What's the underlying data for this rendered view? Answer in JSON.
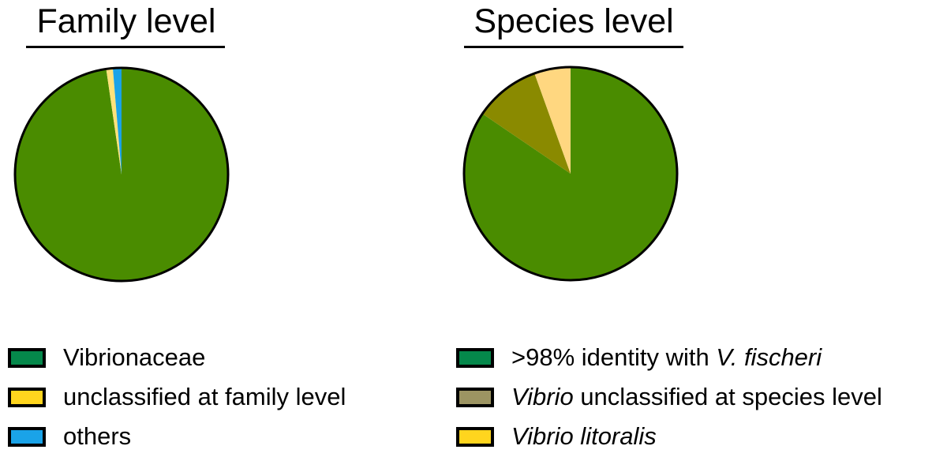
{
  "chart_data": [
    {
      "type": "pie",
      "title": "Family level",
      "slices": [
        {
          "label": "Vibrionaceae",
          "value": 97.7,
          "color": "#4a8c00"
        },
        {
          "label": "unclassified at family level",
          "value": 1.0,
          "color": "#ffe27a"
        },
        {
          "label": "others",
          "value": 1.3,
          "color": "#1aa3e8"
        }
      ],
      "legend": {
        "placement": "bottom-left",
        "entries": [
          {
            "label": "Vibrionaceae",
            "color": "#05884b"
          },
          {
            "label": "unclassified at family level",
            "color": "#ffd51e"
          },
          {
            "label": "others",
            "color": "#1aa3e8"
          }
        ]
      }
    },
    {
      "type": "pie",
      "title": "Species level",
      "slices": [
        {
          "label": ">98% identity with V. fischeri",
          "value": 84.5,
          "color": "#4a8c00"
        },
        {
          "label": "Vibrio unclassified at species level",
          "value": 10.0,
          "color": "#8a8a00"
        },
        {
          "label": "Vibrio litoralis",
          "value": 5.5,
          "color": "#ffd780"
        }
      ],
      "legend": {
        "placement": "bottom-right",
        "entries": [
          {
            "label_parts": [
              {
                "text": ">98% identity with ",
                "italic": false
              },
              {
                "text": "V. fischeri",
                "italic": true
              }
            ],
            "color": "#05884b"
          },
          {
            "label_parts": [
              {
                "text": "Vibrio",
                "italic": true
              },
              {
                "text": " unclassified at species level",
                "italic": false
              }
            ],
            "color": "#9c9462"
          },
          {
            "label_parts": [
              {
                "text": "Vibrio litoralis",
                "italic": true
              }
            ],
            "color": "#ffd51e"
          }
        ]
      }
    }
  ]
}
